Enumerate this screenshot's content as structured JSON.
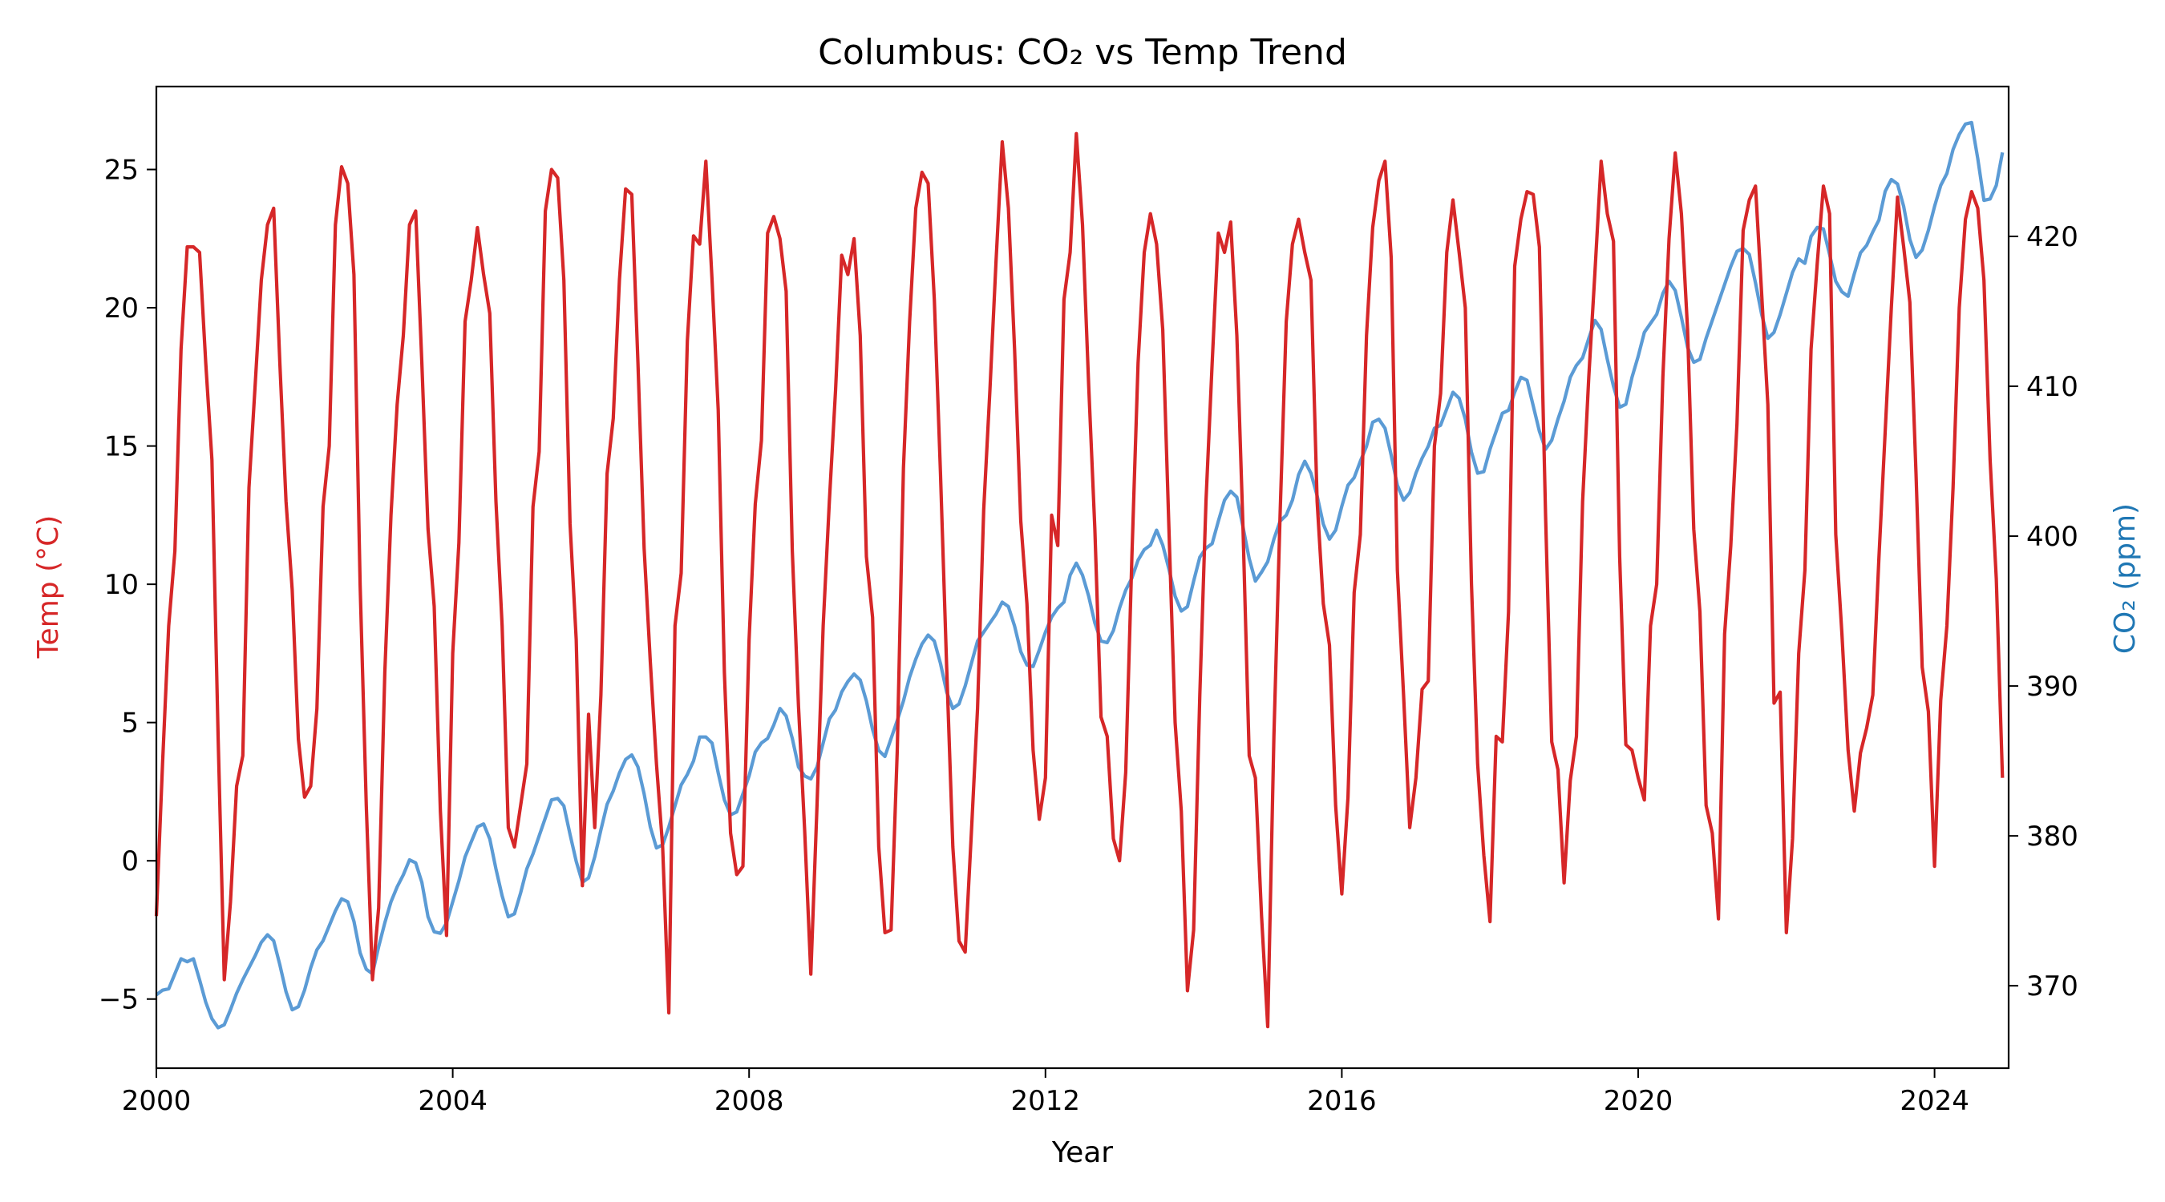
{
  "chart_data": {
    "type": "line",
    "title": "Columbus: CO₂ vs Temp Trend",
    "xlabel": "Year",
    "ylabel_left": "Temp (°C)",
    "ylabel_right": "CO₂ (ppm)",
    "xlim": [
      2000,
      2025
    ],
    "x_ticks": [
      2000,
      2004,
      2008,
      2012,
      2016,
      2020,
      2024
    ],
    "ylim_left": [
      -7.5,
      28.0
    ],
    "y_ticks_left": [
      -5,
      0,
      5,
      10,
      15,
      20,
      25
    ],
    "ylim_right": [
      364.5,
      430.0
    ],
    "y_ticks_right": [
      370,
      380,
      390,
      400,
      410,
      420
    ],
    "grid": false,
    "colors": {
      "temp": "#d62728",
      "co2": "#5b9bd5"
    },
    "series": [
      {
        "axis": "left",
        "start_year": 2000,
        "step": "monthly",
        "values": [
          -2.0,
          3.5,
          8.5,
          11.2,
          18.5,
          22.2,
          22.2,
          22.0,
          18.0,
          14.5,
          4.5,
          -4.3,
          -1.5,
          2.7,
          3.8,
          13.5,
          17.2,
          21.0,
          23.0,
          23.6,
          18.0,
          13.0,
          9.8,
          4.4,
          2.3,
          2.7,
          5.5,
          12.8,
          15.0,
          23.0,
          25.1,
          24.5,
          21.2,
          10.0,
          2.0,
          -4.3,
          -1.7,
          6.8,
          12.5,
          16.5,
          19.0,
          23.0,
          23.5,
          18.0,
          12.0,
          9.2,
          1.8,
          -2.7,
          7.5,
          11.5,
          19.5,
          21.0,
          22.9,
          21.2,
          19.8,
          13.0,
          8.5,
          1.2,
          0.5,
          2.0,
          3.5,
          12.8,
          14.8,
          23.5,
          25.0,
          24.7,
          21.0,
          12.2,
          8.0,
          -0.9,
          5.3,
          1.2,
          6.0,
          14.0,
          16.0,
          21.0,
          24.3,
          24.1,
          18.0,
          11.3,
          7.2,
          3.5,
          0.5,
          -5.5,
          8.5,
          10.4,
          18.8,
          22.6,
          22.3,
          25.3,
          21.0,
          16.3,
          6.8,
          1.0,
          -0.5,
          -0.2,
          8.0,
          12.9,
          15.2,
          22.7,
          23.3,
          22.5,
          20.6,
          11.2,
          5.6,
          1.1,
          -4.1,
          2.0,
          8.5,
          13.0,
          17.0,
          21.9,
          21.2,
          22.5,
          19.0,
          11.0,
          8.8,
          0.5,
          -2.6,
          -2.5,
          4.0,
          14.2,
          19.5,
          23.6,
          24.9,
          24.5,
          20.3,
          14.0,
          7.0,
          0.5,
          -2.9,
          -3.3,
          1.0,
          5.5,
          12.7,
          17.0,
          21.7,
          26.0,
          23.6,
          18.5,
          12.3,
          9.3,
          4.0,
          1.5,
          3.0,
          12.5,
          11.4,
          20.3,
          22.0,
          26.3,
          23.0,
          17.2,
          12.0,
          5.2,
          4.5,
          0.8,
          0.0,
          3.2,
          11.0,
          18.0,
          22.0,
          23.4,
          22.3,
          19.2,
          12.0,
          5.0,
          1.8,
          -4.7,
          -2.5,
          6.0,
          13.0,
          18.0,
          22.7,
          22.0,
          23.1,
          19.0,
          12.0,
          3.8,
          3.0,
          -2.0,
          -6.0,
          4.5,
          12.5,
          19.5,
          22.3,
          23.2,
          22.0,
          21.0,
          13.0,
          9.3,
          7.8,
          2.0,
          -1.2,
          2.3,
          9.7,
          11.8,
          19.0,
          22.9,
          24.6,
          25.3,
          21.8,
          10.5,
          6.0,
          1.2,
          3.0,
          6.2,
          6.5,
          15.0,
          16.9,
          22.0,
          23.9,
          22.0,
          20.0,
          10.0,
          3.5,
          0.2,
          -2.2,
          4.5,
          4.3,
          9.0,
          21.5,
          23.2,
          24.2,
          24.1,
          22.2,
          12.5,
          4.3,
          3.3,
          -0.8,
          2.9,
          4.5,
          13.0,
          17.5,
          21.3,
          25.3,
          23.4,
          22.4,
          11.0,
          4.2,
          4.0,
          3.0,
          2.2,
          8.5,
          10.0,
          17.5,
          22.5,
          25.6,
          23.4,
          19.2,
          12.0,
          9.0,
          2.0,
          1.0,
          -2.1,
          8.2,
          11.4,
          15.8,
          22.8,
          23.9,
          24.4,
          20.5,
          16.5,
          5.7,
          6.1,
          -2.6,
          0.8,
          7.5,
          10.5,
          18.5,
          21.6,
          24.4,
          23.4,
          11.8,
          8.2,
          4.0,
          1.8,
          3.9,
          4.8,
          6.0,
          11.0,
          15.5,
          20.0,
          24.0,
          22.2,
          20.2,
          14.0,
          7.0,
          5.4,
          -0.2,
          5.8,
          8.5,
          13.5,
          20.0,
          23.2,
          24.2,
          23.6,
          21.0,
          14.5,
          10.2,
          3.0
        ]
      },
      {
        "axis": "right",
        "start_year": 2000,
        "step": "monthly",
        "values": [
          369.4,
          369.7,
          369.8,
          370.8,
          371.8,
          371.6,
          371.8,
          370.4,
          368.9,
          367.8,
          367.2,
          367.4,
          368.4,
          369.5,
          370.4,
          371.2,
          372.0,
          372.9,
          373.4,
          373.0,
          371.4,
          369.6,
          368.4,
          368.6,
          369.7,
          371.2,
          372.4,
          373.0,
          374.0,
          375.0,
          375.8,
          375.6,
          374.3,
          372.2,
          371.1,
          370.8,
          372.6,
          374.2,
          375.6,
          376.6,
          377.4,
          378.4,
          378.2,
          376.9,
          374.6,
          373.6,
          373.5,
          374.2,
          375.6,
          377.0,
          378.6,
          379.6,
          380.6,
          380.8,
          379.8,
          377.8,
          376.0,
          374.6,
          374.8,
          376.2,
          377.8,
          378.8,
          380.0,
          381.2,
          382.4,
          382.5,
          382.0,
          380.1,
          378.3,
          376.9,
          377.2,
          378.6,
          380.4,
          382.1,
          383.0,
          384.2,
          385.1,
          385.4,
          384.6,
          382.8,
          380.6,
          379.2,
          379.4,
          380.6,
          382.0,
          383.4,
          384.1,
          385.0,
          386.6,
          386.6,
          386.2,
          384.2,
          382.4,
          381.4,
          381.6,
          382.8,
          384.0,
          385.6,
          386.2,
          386.5,
          387.4,
          388.5,
          388.0,
          386.5,
          384.6,
          384.0,
          383.8,
          384.6,
          386.2,
          387.8,
          388.4,
          389.6,
          390.3,
          390.8,
          390.4,
          389.0,
          387.1,
          385.7,
          385.3,
          386.5,
          387.7,
          389.0,
          390.6,
          391.8,
          392.8,
          393.4,
          393.0,
          391.5,
          389.6,
          388.5,
          388.8,
          390.0,
          391.5,
          393.0,
          393.6,
          394.2,
          394.8,
          395.6,
          395.3,
          394.0,
          392.3,
          391.4,
          391.3,
          392.4,
          393.6,
          394.6,
          395.2,
          395.6,
          397.4,
          398.2,
          397.4,
          396.0,
          394.2,
          393.0,
          392.9,
          393.7,
          395.2,
          396.4,
          397.2,
          398.4,
          399.1,
          399.4,
          400.4,
          399.4,
          397.8,
          396.0,
          395.0,
          395.3,
          397.0,
          398.6,
          399.2,
          399.5,
          401.0,
          402.4,
          403.0,
          402.6,
          400.6,
          398.5,
          397.0,
          397.6,
          398.3,
          399.8,
          401.0,
          401.4,
          402.4,
          404.1,
          405.0,
          404.2,
          402.7,
          400.8,
          399.8,
          400.4,
          402.0,
          403.4,
          403.9,
          405.0,
          406.0,
          407.6,
          407.8,
          407.2,
          405.4,
          403.4,
          402.4,
          402.9,
          404.2,
          405.2,
          406.0,
          407.2,
          407.4,
          408.5,
          409.6,
          409.2,
          407.8,
          405.6,
          404.2,
          404.3,
          405.8,
          407.0,
          408.2,
          408.4,
          409.6,
          410.6,
          410.4,
          408.7,
          407.0,
          405.8,
          406.4,
          407.8,
          409.0,
          410.6,
          411.4,
          411.9,
          413.2,
          414.4,
          413.8,
          411.8,
          410.0,
          408.6,
          408.8,
          410.6,
          412.0,
          413.6,
          414.2,
          414.8,
          416.2,
          417.0,
          416.4,
          414.6,
          412.6,
          411.6,
          411.8,
          413.2,
          414.4,
          415.6,
          416.8,
          418.0,
          419.0,
          419.2,
          418.8,
          416.9,
          414.8,
          413.2,
          413.6,
          414.8,
          416.2,
          417.6,
          418.5,
          418.2,
          420.0,
          420.6,
          420.5,
          418.8,
          417.0,
          416.3,
          416.0,
          417.5,
          418.9,
          419.4,
          420.3,
          421.1,
          423.0,
          423.8,
          423.5,
          422.0,
          419.8,
          418.6,
          419.1,
          420.4,
          422.0,
          423.4,
          424.2,
          425.8,
          426.8,
          427.5,
          427.6,
          425.2,
          422.4,
          422.5,
          423.4,
          425.6
        ]
      }
    ]
  }
}
